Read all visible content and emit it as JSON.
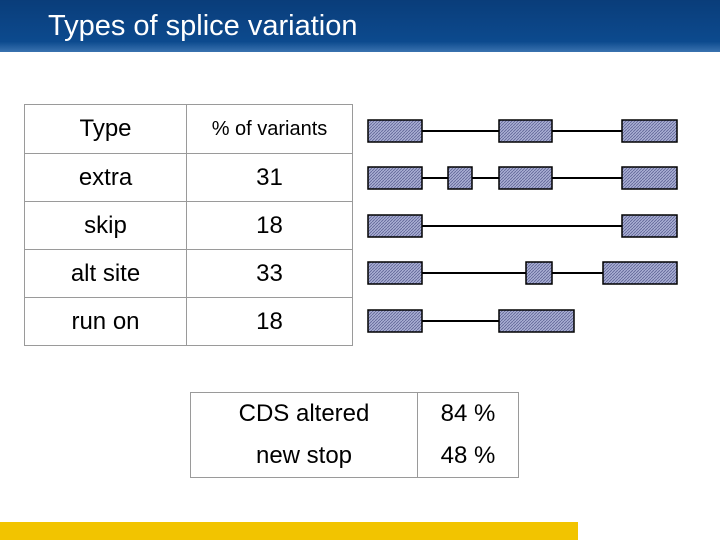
{
  "header": {
    "title": "Types of splice variation"
  },
  "table": {
    "columns": [
      "Type",
      "% of variants"
    ],
    "rows": [
      [
        "extra",
        "31"
      ],
      [
        "skip",
        "18"
      ],
      [
        "alt site",
        "33"
      ],
      [
        "run on",
        "18"
      ]
    ]
  },
  "summary": {
    "rows": [
      [
        "CDS altered",
        "84 %"
      ],
      [
        "new stop",
        "48 %"
      ]
    ]
  }
}
